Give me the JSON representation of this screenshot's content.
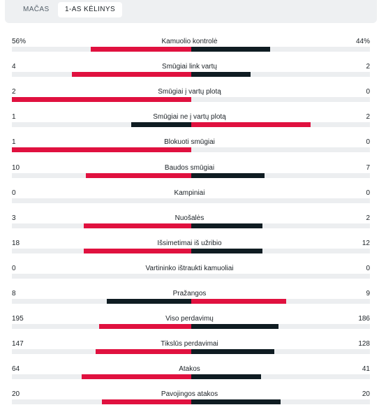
{
  "tabs": [
    {
      "label": "Mačas",
      "active": false
    },
    {
      "label": "1-as kėlinys",
      "active": true
    }
  ],
  "colors": {
    "winner": "#e0113f",
    "loser": "#0f1c22",
    "track": "#eceef0"
  },
  "stats": [
    {
      "label": "Kamuolio kontrolė",
      "home": "56%",
      "away": "44%",
      "home_share": 0.56,
      "away_share": 0.44
    },
    {
      "label": "Smūgiai link vartų",
      "home": "4",
      "away": "2",
      "home_share": 0.6667,
      "away_share": 0.3333
    },
    {
      "label": "Smūgiai į vartų plotą",
      "home": "2",
      "away": "0",
      "home_share": 1.0,
      "away_share": 0.0
    },
    {
      "label": "Smūgiai ne į vartų plotą",
      "home": "1",
      "away": "2",
      "home_share": 0.3333,
      "away_share": 0.6667
    },
    {
      "label": "Blokuoti smūgiai",
      "home": "1",
      "away": "0",
      "home_share": 1.0,
      "away_share": 0.0
    },
    {
      "label": "Baudos smūgiai",
      "home": "10",
      "away": "7",
      "home_share": 0.5882,
      "away_share": 0.4118
    },
    {
      "label": "Kampiniai",
      "home": "0",
      "away": "0",
      "home_share": 0.0,
      "away_share": 0.0
    },
    {
      "label": "Nuošalės",
      "home": "3",
      "away": "2",
      "home_share": 0.6,
      "away_share": 0.4
    },
    {
      "label": "Išsimetimai iš užribio",
      "home": "18",
      "away": "12",
      "home_share": 0.6,
      "away_share": 0.4
    },
    {
      "label": "Vartininko ištraukti kamuoliai",
      "home": "0",
      "away": "0",
      "home_share": 0.0,
      "away_share": 0.0
    },
    {
      "label": "Pražangos",
      "home": "8",
      "away": "9",
      "home_share": 0.4706,
      "away_share": 0.5294
    },
    {
      "label": "Viso perdavimų",
      "home": "195",
      "away": "186",
      "home_share": 0.5118,
      "away_share": 0.4882
    },
    {
      "label": "Tikslūs perdavimai",
      "home": "147",
      "away": "128",
      "home_share": 0.5345,
      "away_share": 0.4655
    },
    {
      "label": "Atakos",
      "home": "64",
      "away": "41",
      "home_share": 0.6095,
      "away_share": 0.3905
    },
    {
      "label": "Pavojingos atakos",
      "home": "20",
      "away": "20",
      "home_share": 0.5,
      "away_share": 0.5
    }
  ]
}
